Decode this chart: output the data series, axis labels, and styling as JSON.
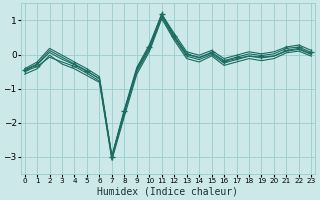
{
  "xlabel": "Humidex (Indice chaleur)",
  "bg_color": "#cce8e8",
  "grid_color": "#99cccc",
  "line_color": "#1a6b60",
  "x": [
    0,
    1,
    2,
    3,
    4,
    5,
    6,
    7,
    8,
    9,
    10,
    11,
    12,
    13,
    14,
    15,
    16,
    17,
    18,
    19,
    20,
    21,
    22,
    23
  ],
  "lines": [
    [
      -0.45,
      -0.28,
      0.12,
      -0.08,
      -0.28,
      -0.48,
      -0.72,
      -3.0,
      -1.65,
      -0.42,
      0.22,
      1.2,
      0.55,
      0.02,
      -0.08,
      0.06,
      -0.18,
      -0.08,
      0.02,
      -0.03,
      0.02,
      0.18,
      0.22,
      0.06
    ],
    [
      -0.5,
      -0.35,
      -0.08,
      -0.22,
      -0.35,
      -0.55,
      -0.78,
      -3.05,
      -1.72,
      -0.5,
      0.14,
      1.1,
      0.48,
      -0.05,
      -0.15,
      0.0,
      -0.25,
      -0.15,
      -0.05,
      -0.1,
      -0.05,
      0.1,
      0.15,
      0.0
    ],
    [
      -0.42,
      -0.22,
      0.18,
      -0.02,
      -0.22,
      -0.42,
      -0.65,
      -2.98,
      -1.62,
      -0.38,
      0.28,
      1.18,
      0.62,
      0.08,
      -0.02,
      0.12,
      -0.12,
      -0.02,
      0.08,
      0.02,
      0.08,
      0.22,
      0.28,
      0.12
    ],
    [
      -0.58,
      -0.42,
      -0.02,
      -0.28,
      -0.42,
      -0.62,
      -0.82,
      -3.1,
      -1.82,
      -0.58,
      0.08,
      1.05,
      0.42,
      -0.12,
      -0.22,
      -0.04,
      -0.32,
      -0.22,
      -0.12,
      -0.18,
      -0.12,
      0.05,
      0.1,
      -0.05
    ],
    [
      -0.48,
      -0.3,
      0.06,
      -0.14,
      -0.3,
      -0.5,
      -0.7,
      -3.02,
      -1.68,
      -0.46,
      0.2,
      1.15,
      0.52,
      0.0,
      -0.1,
      0.04,
      -0.2,
      -0.12,
      -0.04,
      -0.08,
      -0.04,
      0.12,
      0.18,
      0.02
    ]
  ],
  "marker_plus": [
    0,
    5,
    7,
    8,
    10,
    11,
    12,
    13,
    15,
    16,
    17,
    19,
    22,
    23
  ],
  "marker_tri": [
    1,
    4,
    21
  ],
  "ylim": [
    -3.5,
    1.5
  ],
  "yticks": [
    -3,
    -2,
    -1,
    0,
    1
  ],
  "xlim": [
    -0.3,
    23.3
  ],
  "xtick_labels": [
    "0",
    "1",
    "2",
    "3",
    "4",
    "5",
    "6",
    "7",
    "8",
    "9",
    "10",
    "11",
    "12",
    "13",
    "14",
    "15",
    "16",
    "17",
    "18",
    "19",
    "20",
    "21",
    "22",
    "23"
  ]
}
